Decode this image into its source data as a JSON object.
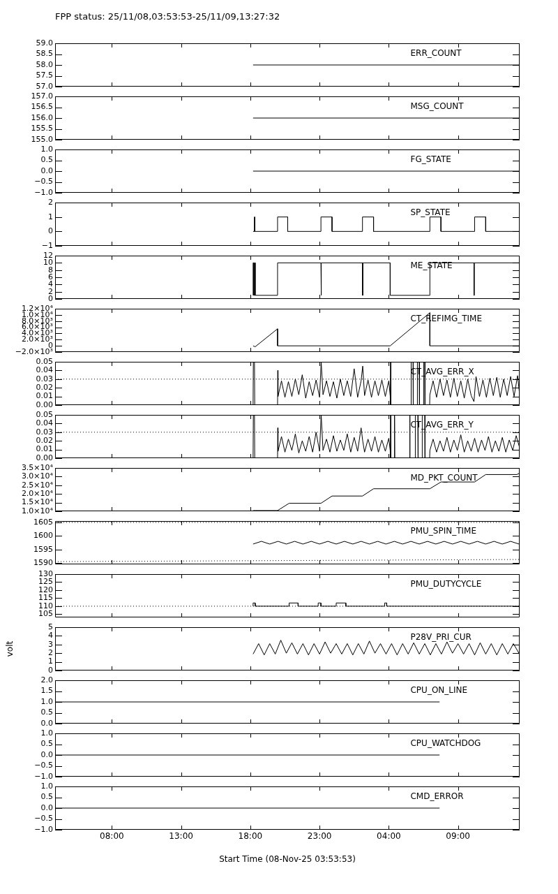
{
  "chart_data": [
    {
      "type": "line",
      "title": "FPP status: 25/11/08,03:53:53-25/11/09,13:27:32",
      "tick_labels": "y",
      "xlim": [
        "--11-08T03:54",
        "--11-09T13:27"
      ],
      "xticks": [
        {
          "value": "--11-08T08:00",
          "label": null
        },
        {
          "value": "--11-08T13:00",
          "label": null
        },
        {
          "value": "--11-08T18:00",
          "label": null
        },
        {
          "value": "--11-08T23:00",
          "label": null
        },
        {
          "value": "--11-09T04:00",
          "label": null
        },
        {
          "value": "--11-09T09:00",
          "label": null
        }
      ],
      "ylim": [
        57,
        59
      ],
      "yticks": [
        {
          "value": 57,
          "label": "57.0"
        },
        57.5,
        {
          "value": 58,
          "label": "58.0"
        },
        58.5,
        {
          "value": 59,
          "label": "59.0"
        }
      ],
      "annotations": [
        "ERR_COUNT"
      ],
      "series": [
        {
          "color": "#000000",
          "x": [
            "--11-08T18:12",
            "--11-09T13:27"
          ],
          "values": [
            58,
            58
          ]
        }
      ]
    },
    {
      "type": "line",
      "tick_labels": "y",
      "xlim": [
        "--11-08T03:54",
        "--11-09T13:27"
      ],
      "xticks": [
        {
          "value": "--11-08T08:00",
          "label": null
        },
        {
          "value": "--11-08T13:00",
          "label": null
        },
        {
          "value": "--11-08T18:00",
          "label": null
        },
        {
          "value": "--11-08T23:00",
          "label": null
        },
        {
          "value": "--11-09T04:00",
          "label": null
        },
        {
          "value": "--11-09T09:00",
          "label": null
        }
      ],
      "ylim": [
        155,
        157
      ],
      "yticks": [
        {
          "value": 155,
          "label": "155.0"
        },
        155.5,
        {
          "value": 156,
          "label": "156.0"
        },
        156.5,
        {
          "value": 157,
          "label": "157.0"
        }
      ],
      "annotations": [
        "MSG_COUNT"
      ],
      "series": [
        {
          "color": "#000000",
          "x": [
            "--11-08T18:12",
            "--11-09T13:27"
          ],
          "values": [
            156,
            156
          ]
        }
      ]
    },
    {
      "type": "line",
      "tick_labels": "y",
      "xlim": [
        "--11-08T03:54",
        "--11-09T13:27"
      ],
      "xticks": [
        {
          "value": "--11-08T08:00",
          "label": null
        },
        {
          "value": "--11-08T13:00",
          "label": null
        },
        {
          "value": "--11-08T18:00",
          "label": null
        },
        {
          "value": "--11-08T23:00",
          "label": null
        },
        {
          "value": "--11-09T04:00",
          "label": null
        },
        {
          "value": "--11-09T09:00",
          "label": null
        }
      ],
      "ylim": [
        -1,
        1
      ],
      "yticks": [
        {
          "value": -1,
          "label": "−1.0"
        },
        {
          "value": -0.5,
          "label": "−0.5"
        },
        {
          "value": 0,
          "label": "0.0"
        },
        0.5,
        {
          "value": 1,
          "label": "1.0"
        }
      ],
      "annotations": [
        "FG_STATE"
      ],
      "series": [
        {
          "color": "#000000",
          "x": [
            "--11-08T18:12",
            "--11-09T13:27"
          ],
          "values": [
            0,
            0
          ]
        }
      ]
    },
    {
      "type": "line",
      "tick_labels": "y",
      "xlim": [
        "--11-08T03:54",
        "--11-09T13:27"
      ],
      "xticks": [
        {
          "value": "--11-08T08:00",
          "label": null
        },
        {
          "value": "--11-08T13:00",
          "label": null
        },
        {
          "value": "--11-08T18:00",
          "label": null
        },
        {
          "value": "--11-08T23:00",
          "label": null
        },
        {
          "value": "--11-09T04:00",
          "label": null
        },
        {
          "value": "--11-09T09:00",
          "label": null
        }
      ],
      "ylim": [
        -1,
        2
      ],
      "yticks": [
        {
          "value": -1,
          "label": "−1"
        },
        0,
        1,
        2
      ],
      "annotations": [
        "SP_STATE"
      ],
      "series": [
        {
          "color": "#000000",
          "x": [
            "--11-08T18:12",
            "--11-08T18:18",
            "--11-08T18:18",
            "--11-08T18:19",
            "--11-08T18:19",
            "--11-08T19:58",
            "--11-08T19:58",
            "--11-08T20:42",
            "--11-08T20:42",
            "--11-08T23:06",
            "--11-08T23:06",
            "--11-08T23:54",
            "--11-08T23:54",
            "--11-09T02:06",
            "--11-09T02:06",
            "--11-09T02:54",
            "--11-09T02:54",
            "--11-09T06:58",
            "--11-09T06:58",
            "--11-09T07:46",
            "--11-09T07:46",
            "--11-09T10:12",
            "--11-09T10:12",
            "--11-09T11:00",
            "--11-09T11:00",
            "--11-09T13:27"
          ],
          "values": [
            0,
            0,
            1,
            1,
            0,
            0,
            1,
            1,
            0,
            0,
            1,
            1,
            0,
            0,
            1,
            1,
            0,
            0,
            1,
            1,
            0,
            0,
            1,
            1,
            0,
            0
          ]
        }
      ]
    },
    {
      "type": "line",
      "tick_labels": "y",
      "xlim": [
        "--11-08T03:54",
        "--11-09T13:27"
      ],
      "xticks": [
        {
          "value": "--11-08T08:00",
          "label": null
        },
        {
          "value": "--11-08T13:00",
          "label": null
        },
        {
          "value": "--11-08T18:00",
          "label": null
        },
        {
          "value": "--11-08T23:00",
          "label": null
        },
        {
          "value": "--11-09T04:00",
          "label": null
        },
        {
          "value": "--11-09T09:00",
          "label": null
        }
      ],
      "ylim": [
        0,
        12
      ],
      "yticks": [
        0,
        2,
        4,
        6,
        8,
        10,
        12
      ],
      "annotations": [
        "ME_STATE"
      ],
      "series": [
        {
          "color": "#000000",
          "x": [
            "--11-08T18:12",
            "--11-08T18:12",
            "--11-08T18:15",
            "--11-08T18:15",
            "--11-08T18:18",
            "--11-08T18:18",
            "--11-08T18:21",
            "--11-08T18:21",
            "--11-08T19:58",
            "--11-08T19:58",
            "--11-08T23:06",
            "--11-08T23:06",
            "--11-08T23:08",
            "--11-08T23:08",
            "--11-09T02:06",
            "--11-09T02:06",
            "--11-09T02:08",
            "--11-09T02:08",
            "--11-09T04:06",
            "--11-09T04:06",
            "--11-09T06:58",
            "--11-09T06:58",
            "--11-09T10:09",
            "--11-09T10:09",
            "--11-09T10:11",
            "--11-09T10:11",
            "--11-09T13:27"
          ],
          "values": [
            1,
            10,
            10,
            1,
            1,
            10,
            10,
            1,
            1,
            10,
            10,
            1,
            1,
            10,
            10,
            1,
            1,
            10,
            10,
            1,
            1,
            10,
            10,
            1,
            1,
            10,
            10
          ]
        }
      ]
    },
    {
      "type": "line",
      "tick_labels": "y",
      "xlim": [
        "--11-08T03:54",
        "--11-09T13:27"
      ],
      "xticks": [
        {
          "value": "--11-08T08:00",
          "label": null
        },
        {
          "value": "--11-08T13:00",
          "label": null
        },
        {
          "value": "--11-08T18:00",
          "label": null
        },
        {
          "value": "--11-08T23:00",
          "label": null
        },
        {
          "value": "--11-09T04:00",
          "label": null
        },
        {
          "value": "--11-09T09:00",
          "label": null
        }
      ],
      "ylim": [
        -2000,
        12000
      ],
      "yticks": [
        {
          "value": -2000,
          "label": "−2.0×10³"
        },
        0,
        {
          "value": 2000,
          "label": "2.0×10³"
        },
        {
          "value": 4000,
          "label": "4.0×10³"
        },
        {
          "value": 6000,
          "label": "6.0×10³"
        },
        {
          "value": 8000,
          "label": "8.0×10³"
        },
        {
          "value": 10000,
          "label": "1.0×10⁴"
        },
        {
          "value": 12000,
          "label": "1.2×10⁴"
        }
      ],
      "annotations": [
        "CT_REFIMG_TIME"
      ],
      "series": [
        {
          "color": "#000000",
          "x": [
            "--11-08T18:12",
            "--11-08T18:21",
            "--11-08T19:58",
            "--11-08T19:58",
            "--11-09T04:06",
            "--11-09T06:58",
            "--11-09T06:58",
            "--11-09T13:27"
          ],
          "values": [
            0,
            -300,
            5500,
            0,
            0,
            10700,
            0,
            0
          ]
        }
      ]
    },
    {
      "type": "line",
      "tick_labels": "y",
      "xlim": [
        "--11-08T03:54",
        "--11-09T13:27"
      ],
      "xticks": [
        {
          "value": "--11-08T08:00",
          "label": null
        },
        {
          "value": "--11-08T13:00",
          "label": null
        },
        {
          "value": "--11-08T18:00",
          "label": null
        },
        {
          "value": "--11-08T23:00",
          "label": null
        },
        {
          "value": "--11-09T04:00",
          "label": null
        },
        {
          "value": "--11-09T09:00",
          "label": null
        }
      ],
      "ylim": [
        0,
        0.05
      ],
      "yticks": [
        {
          "value": 0,
          "label": "0.00"
        },
        0.01,
        0.02,
        0.03,
        0.04,
        0.05
      ],
      "annotations": [
        "CT_AVG_ERR_X"
      ],
      "ref_lines": [
        {
          "axis": "y",
          "value": 0.03,
          "line_style": "dotted"
        }
      ],
      "series": [
        {
          "color": "#000000",
          "x": [
            "--11-08T18:12",
            "--11-08T18:13",
            "--11-08T18:18",
            "--11-08T18:19",
            "--11-08T19:58",
            "--11-08T19:59",
            "--11-08T20:00",
            "--11-08T20:15",
            "--11-08T20:30",
            "--11-08T20:45",
            "--11-08T21:00",
            "--11-08T21:15",
            "--11-08T21:30",
            "--11-08T21:45",
            "--11-08T22:00",
            "--11-08T22:15",
            "--11-08T22:30",
            "--11-08T22:45",
            "--11-08T23:00",
            "--11-08T23:07",
            "--11-08T23:15",
            "--11-08T23:30",
            "--11-08T23:45",
            "--11-09T00:00",
            "--11-09T00:15",
            "--11-09T00:30",
            "--11-09T00:45",
            "--11-09T01:00",
            "--11-09T01:15",
            "--11-09T01:30",
            "--11-09T01:45",
            "--11-09T02:00",
            "--11-09T02:07",
            "--11-09T02:15",
            "--11-09T02:30",
            "--11-09T02:45",
            "--11-09T03:00",
            "--11-09T03:15",
            "--11-09T03:30",
            "--11-09T03:45",
            "--11-09T04:00",
            "--11-09T04:06",
            "--11-09T04:07",
            "--11-09T04:08",
            "--11-09T04:09",
            "--11-09T05:36",
            "--11-09T05:37",
            "--11-09T05:45",
            "--11-09T05:46",
            "--11-09T06:03",
            "--11-09T06:04",
            "--11-09T06:12",
            "--11-09T06:13",
            "--11-09T06:30",
            "--11-09T06:31",
            "--11-09T06:36",
            "--11-09T06:37",
            "--11-09T06:57",
            "--11-09T06:58",
            "--11-09T07:12",
            "--11-09T07:27",
            "--11-09T07:42",
            "--11-09T07:57",
            "--11-09T08:12",
            "--11-09T08:27",
            "--11-09T08:42",
            "--11-09T08:57",
            "--11-09T09:12",
            "--11-09T09:27",
            "--11-09T09:42",
            "--11-09T09:57",
            "--11-09T10:09",
            "--11-09T10:18",
            "--11-09T10:33",
            "--11-09T10:48",
            "--11-09T11:03",
            "--11-09T11:18",
            "--11-09T11:33",
            "--11-09T11:48",
            "--11-09T12:03",
            "--11-09T12:18",
            "--11-09T12:33",
            "--11-09T12:48",
            "--11-09T13:03",
            "--11-09T13:18",
            "--11-09T13:27"
          ],
          "values": [
            0,
            0.05,
            0.05,
            0,
            0,
            0.04,
            0.01,
            0.028,
            0.009,
            0.027,
            0.01,
            0.03,
            0.012,
            0.035,
            0.008,
            0.027,
            0.011,
            0.029,
            0.009,
            0.05,
            0.012,
            0.028,
            0.01,
            0.027,
            0.008,
            0.03,
            0.011,
            0.028,
            0.01,
            0.042,
            0.009,
            0.028,
            0.045,
            0.011,
            0.029,
            0.009,
            0.028,
            0.011,
            0.029,
            0.01,
            0.028,
            0.011,
            0,
            0.05,
            0,
            0,
            0.05,
            0.05,
            0,
            0,
            0.05,
            0.05,
            0,
            0,
            0.05,
            0.05,
            0,
            0,
            0.012,
            0.028,
            0.009,
            0.03,
            0.011,
            0.029,
            0.009,
            0.031,
            0.01,
            0.028,
            0.008,
            0.03,
            0.011,
            0.004,
            0.033,
            0.01,
            0.029,
            0.009,
            0.031,
            0.011,
            0.032,
            0.009,
            0.03,
            0.011,
            0.033,
            0.01,
            0.034,
            0.012
          ]
        }
      ]
    },
    {
      "type": "line",
      "tick_labels": "y",
      "xlim": [
        "--11-08T03:54",
        "--11-09T13:27"
      ],
      "xticks": [
        {
          "value": "--11-08T08:00",
          "label": null
        },
        {
          "value": "--11-08T13:00",
          "label": null
        },
        {
          "value": "--11-08T18:00",
          "label": null
        },
        {
          "value": "--11-08T23:00",
          "label": null
        },
        {
          "value": "--11-09T04:00",
          "label": null
        },
        {
          "value": "--11-09T09:00",
          "label": null
        }
      ],
      "ylim": [
        0,
        0.05
      ],
      "yticks": [
        {
          "value": 0,
          "label": "0.00"
        },
        0.01,
        0.02,
        0.03,
        0.04,
        0.05
      ],
      "annotations": [
        "CT_AVG_ERR_Y"
      ],
      "ref_lines": [
        {
          "axis": "y",
          "value": 0.03,
          "line_style": "dotted"
        }
      ],
      "series": [
        {
          "color": "#000000",
          "x": [
            "--11-08T18:12",
            "--11-08T18:13",
            "--11-08T18:18",
            "--11-08T18:19",
            "--11-08T19:58",
            "--11-08T19:59",
            "--11-08T20:00",
            "--11-08T20:15",
            "--11-08T20:30",
            "--11-08T20:45",
            "--11-08T21:00",
            "--11-08T21:15",
            "--11-08T21:30",
            "--11-08T21:45",
            "--11-08T22:00",
            "--11-08T22:15",
            "--11-08T22:30",
            "--11-08T22:45",
            "--11-08T23:00",
            "--11-08T23:07",
            "--11-08T23:15",
            "--11-08T23:30",
            "--11-08T23:45",
            "--11-09T00:00",
            "--11-09T00:15",
            "--11-09T00:30",
            "--11-09T00:45",
            "--11-09T01:00",
            "--11-09T01:15",
            "--11-09T01:30",
            "--11-09T01:45",
            "--11-09T02:00",
            "--11-09T02:07",
            "--11-09T02:15",
            "--11-09T02:30",
            "--11-09T02:45",
            "--11-09T03:00",
            "--11-09T03:15",
            "--11-09T03:30",
            "--11-09T03:45",
            "--11-09T04:00",
            "--11-09T04:06",
            "--11-09T04:07",
            "--11-09T04:08",
            "--11-09T04:09",
            "--11-09T04:24",
            "--11-09T04:25",
            "--11-09T04:26",
            "--11-09T05:30",
            "--11-09T05:31",
            "--11-09T05:32",
            "--11-09T05:54",
            "--11-09T05:55",
            "--11-09T06:06",
            "--11-09T06:07",
            "--11-09T06:24",
            "--11-09T06:25",
            "--11-09T06:36",
            "--11-09T06:37",
            "--11-09T06:57",
            "--11-09T06:58",
            "--11-09T07:12",
            "--11-09T07:27",
            "--11-09T07:42",
            "--11-09T07:57",
            "--11-09T08:12",
            "--11-09T08:27",
            "--11-09T08:42",
            "--11-09T08:57",
            "--11-09T09:12",
            "--11-09T09:27",
            "--11-09T09:42",
            "--11-09T09:57",
            "--11-09T10:12",
            "--11-09T10:27",
            "--11-09T10:42",
            "--11-09T10:57",
            "--11-09T11:12",
            "--11-09T11:27",
            "--11-09T11:42",
            "--11-09T11:57",
            "--11-09T12:12",
            "--11-09T12:27",
            "--11-09T12:42",
            "--11-09T12:57",
            "--11-09T13:12",
            "--11-09T13:27"
          ],
          "values": [
            0,
            0.05,
            0.05,
            0,
            0,
            0.035,
            0.008,
            0.025,
            0.007,
            0.022,
            0.009,
            0.028,
            0.006,
            0.02,
            0.008,
            0.025,
            0.007,
            0.03,
            0.008,
            0.05,
            0.009,
            0.022,
            0.007,
            0.026,
            0.008,
            0.021,
            0.009,
            0.028,
            0.007,
            0.024,
            0.008,
            0.035,
            0.02,
            0.007,
            0.022,
            0.008,
            0.025,
            0.007,
            0.021,
            0.008,
            0.023,
            0.009,
            0,
            0.05,
            0,
            0,
            0.05,
            0,
            0,
            0.05,
            0,
            0,
            0.05,
            0.05,
            0,
            0,
            0.05,
            0.05,
            0,
            0,
            0.009,
            0.022,
            0.007,
            0.02,
            0.008,
            0.024,
            0.007,
            0.021,
            0.009,
            0.027,
            0.007,
            0.02,
            0.008,
            0.023,
            0.007,
            0.021,
            0.009,
            0.025,
            0.007,
            0.02,
            0.008,
            0.024,
            0.007,
            0.021,
            0.009,
            0.026,
            0.012
          ]
        }
      ]
    },
    {
      "type": "line",
      "tick_labels": "y",
      "xlim": [
        "--11-08T03:54",
        "--11-09T13:27"
      ],
      "xticks": [
        {
          "value": "--11-08T08:00",
          "label": null
        },
        {
          "value": "--11-08T13:00",
          "label": null
        },
        {
          "value": "--11-08T18:00",
          "label": null
        },
        {
          "value": "--11-08T23:00",
          "label": null
        },
        {
          "value": "--11-09T04:00",
          "label": null
        },
        {
          "value": "--11-09T09:00",
          "label": null
        }
      ],
      "ylim": [
        10000,
        35000
      ],
      "yticks": [
        {
          "value": 10000,
          "label": "1.0×10⁴"
        },
        {
          "value": 15000,
          "label": "1.5×10⁴"
        },
        {
          "value": 20000,
          "label": "2.0×10⁴"
        },
        {
          "value": 25000,
          "label": "2.5×10⁴"
        },
        {
          "value": 30000,
          "label": "3.0×10⁴"
        },
        {
          "value": 35000,
          "label": "3.5×10⁴"
        }
      ],
      "annotations": [
        "MD_PKT_COUNT"
      ],
      "series": [
        {
          "color": "#000000",
          "x": [
            "--11-08T18:12",
            "--11-08T19:58",
            "--11-08T20:48",
            "--11-08T23:06",
            "--11-08T23:54",
            "--11-09T02:06",
            "--11-09T02:54",
            "--11-09T06:58",
            "--11-09T07:46",
            "--11-09T10:12",
            "--11-09T11:00",
            "--11-09T13:15",
            "--11-09T13:27"
          ],
          "values": [
            10400,
            10400,
            14600,
            14600,
            18800,
            18800,
            23000,
            23000,
            26900,
            26900,
            31200,
            31200,
            32000
          ]
        }
      ]
    },
    {
      "type": "line",
      "tick_labels": "y",
      "xlim": [
        "--11-08T03:54",
        "--11-09T13:27"
      ],
      "xticks": [
        {
          "value": "--11-08T08:00",
          "label": null
        },
        {
          "value": "--11-08T13:00",
          "label": null
        },
        {
          "value": "--11-08T18:00",
          "label": null
        },
        {
          "value": "--11-08T23:00",
          "label": null
        },
        {
          "value": "--11-09T04:00",
          "label": null
        },
        {
          "value": "--11-09T09:00",
          "label": null
        }
      ],
      "ylim": [
        1589.5,
        1605.5
      ],
      "yticks": [
        1590,
        1595,
        1600,
        1605
      ],
      "annotations": [
        "PMU_SPIN_TIME"
      ],
      "ref_lines": [
        {
          "axis": "y",
          "value": 1605,
          "line_style": "dotted"
        }
      ],
      "series": [
        {
          "color": "#000000",
          "line_style": "dotted",
          "x": [
            "--11-08T03:54",
            "--11-09T13:27"
          ],
          "values": [
            1590.5,
            1591.3
          ]
        },
        {
          "color": "#000000",
          "x": [
            "--11-08T18:12",
            "--11-08T18:48",
            "--11-08T19:24",
            "--11-08T20:00",
            "--11-08T20:36",
            "--11-08T21:12",
            "--11-08T21:48",
            "--11-08T22:24",
            "--11-08T23:00",
            "--11-08T23:36",
            "--11-09T00:12",
            "--11-09T00:48",
            "--11-09T01:24",
            "--11-09T02:00",
            "--11-09T02:36",
            "--11-09T03:12",
            "--11-09T03:48",
            "--11-09T04:24",
            "--11-09T05:00",
            "--11-09T05:36",
            "--11-09T06:12",
            "--11-09T06:48",
            "--11-09T07:24",
            "--11-09T08:00",
            "--11-09T08:36",
            "--11-09T09:12",
            "--11-09T09:48",
            "--11-09T10:24",
            "--11-09T11:00",
            "--11-09T11:36",
            "--11-09T12:12",
            "--11-09T12:48",
            "--11-09T13:24"
          ],
          "values": [
            1597,
            1598,
            1597,
            1598,
            1597,
            1598,
            1597,
            1598,
            1597,
            1598,
            1597,
            1598,
            1597,
            1598,
            1597,
            1598,
            1597,
            1598,
            1597,
            1598,
            1597,
            1598,
            1597,
            1598,
            1597,
            1598,
            1597,
            1598,
            1597,
            1598,
            1597,
            1598,
            1597
          ]
        }
      ]
    },
    {
      "type": "line",
      "tick_labels": "y",
      "xlim": [
        "--11-08T03:54",
        "--11-09T13:27"
      ],
      "xticks": [
        {
          "value": "--11-08T08:00",
          "label": null
        },
        {
          "value": "--11-08T13:00",
          "label": null
        },
        {
          "value": "--11-08T18:00",
          "label": null
        },
        {
          "value": "--11-08T23:00",
          "label": null
        },
        {
          "value": "--11-09T04:00",
          "label": null
        },
        {
          "value": "--11-09T09:00",
          "label": null
        }
      ],
      "ylim": [
        103,
        130
      ],
      "yticks": [
        105,
        110,
        115,
        120,
        125,
        130
      ],
      "annotations": [
        "PMU_DUTYCYCLE"
      ],
      "ref_lines": [
        {
          "axis": "y",
          "value": 110,
          "line_style": "dotted"
        }
      ],
      "series": [
        {
          "color": "#000000",
          "x": [
            "--11-08T18:12",
            "--11-08T18:12",
            "--11-08T18:21",
            "--11-08T18:21",
            "--11-08T20:48",
            "--11-08T20:48",
            "--11-08T21:27",
            "--11-08T21:27",
            "--11-08T22:54",
            "--11-08T22:54",
            "--11-08T23:06",
            "--11-08T23:06",
            "--11-09T00:12",
            "--11-09T00:12",
            "--11-09T00:54",
            "--11-09T00:54",
            "--11-09T03:42",
            "--11-09T03:42",
            "--11-09T03:51",
            "--11-09T03:51",
            "--11-09T13:27"
          ],
          "values": [
            110,
            112,
            112,
            110,
            110,
            112,
            112,
            110,
            110,
            112,
            112,
            110,
            110,
            112,
            112,
            110,
            110,
            112,
            112,
            110,
            110
          ]
        }
      ]
    },
    {
      "type": "line",
      "tick_labels": "y",
      "xlim": [
        "--11-08T03:54",
        "--11-09T13:27"
      ],
      "xticks": [
        {
          "value": "--11-08T08:00",
          "label": null
        },
        {
          "value": "--11-08T13:00",
          "label": null
        },
        {
          "value": "--11-08T18:00",
          "label": null
        },
        {
          "value": "--11-08T23:00",
          "label": null
        },
        {
          "value": "--11-09T04:00",
          "label": null
        },
        {
          "value": "--11-09T09:00",
          "label": null
        }
      ],
      "ylim": [
        0,
        5
      ],
      "yticks": [
        0,
        1,
        2,
        3,
        4,
        5
      ],
      "ylabel": "volt",
      "annotations": [
        "P28V_PRI_CUR"
      ],
      "series": [
        {
          "color": "#000000",
          "x": [
            "--11-08T18:12",
            "--11-08T18:36",
            "--11-08T19:00",
            "--11-08T19:24",
            "--11-08T19:48",
            "--11-08T20:12",
            "--11-08T20:36",
            "--11-08T21:00",
            "--11-08T21:24",
            "--11-08T21:48",
            "--11-08T22:12",
            "--11-08T22:36",
            "--11-08T23:00",
            "--11-08T23:24",
            "--11-08T23:48",
            "--11-09T00:12",
            "--11-09T00:36",
            "--11-09T01:00",
            "--11-09T01:24",
            "--11-09T01:48",
            "--11-09T02:12",
            "--11-09T02:36",
            "--11-09T03:00",
            "--11-09T03:24",
            "--11-09T03:48",
            "--11-09T04:12",
            "--11-09T04:36",
            "--11-09T05:00",
            "--11-09T05:24",
            "--11-09T05:48",
            "--11-09T06:12",
            "--11-09T06:36",
            "--11-09T07:00",
            "--11-09T07:24",
            "--11-09T07:48",
            "--11-09T08:12",
            "--11-09T08:36",
            "--11-09T09:00",
            "--11-09T09:24",
            "--11-09T09:48",
            "--11-09T10:12",
            "--11-09T10:36",
            "--11-09T11:00",
            "--11-09T11:24",
            "--11-09T11:48",
            "--11-09T12:12",
            "--11-09T12:36",
            "--11-09T13:00",
            "--11-09T13:24"
          ],
          "values": [
            1.9,
            3.1,
            1.8,
            3.1,
            1.9,
            3.5,
            2.0,
            3.2,
            1.9,
            3.1,
            1.8,
            3.1,
            1.9,
            3.3,
            2.0,
            3.1,
            1.9,
            3.1,
            1.8,
            3.1,
            1.9,
            3.4,
            2.0,
            3.1,
            1.9,
            3.1,
            1.8,
            3.1,
            1.9,
            3.2,
            1.9,
            3.1,
            1.8,
            3.1,
            1.9,
            3.3,
            2.0,
            3.1,
            1.9,
            3.1,
            1.8,
            3.2,
            1.9,
            3.1,
            1.8,
            3.1,
            1.9,
            3.1,
            2.0
          ]
        }
      ]
    },
    {
      "type": "line",
      "tick_labels": "y",
      "xlim": [
        "--11-08T03:54",
        "--11-09T13:27"
      ],
      "xticks": [
        {
          "value": "--11-08T08:00",
          "label": null
        },
        {
          "value": "--11-08T13:00",
          "label": null
        },
        {
          "value": "--11-08T18:00",
          "label": null
        },
        {
          "value": "--11-08T23:00",
          "label": null
        },
        {
          "value": "--11-09T04:00",
          "label": null
        },
        {
          "value": "--11-09T09:00",
          "label": null
        }
      ],
      "ylim": [
        0,
        2
      ],
      "yticks": [
        {
          "value": 0,
          "label": "0.0"
        },
        0.5,
        {
          "value": 1,
          "label": "1.0"
        },
        1.5,
        {
          "value": 2,
          "label": "2.0"
        }
      ],
      "annotations": [
        "CPU_ON_LINE"
      ],
      "series": [
        {
          "color": "#000000",
          "x": [
            "--11-08T03:54",
            "--11-09T07:40"
          ],
          "values": [
            1,
            1
          ]
        }
      ]
    },
    {
      "type": "line",
      "tick_labels": "y",
      "xlim": [
        "--11-08T03:54",
        "--11-09T13:27"
      ],
      "xticks": [
        {
          "value": "--11-08T08:00",
          "label": null
        },
        {
          "value": "--11-08T13:00",
          "label": null
        },
        {
          "value": "--11-08T18:00",
          "label": null
        },
        {
          "value": "--11-08T23:00",
          "label": null
        },
        {
          "value": "--11-09T04:00",
          "label": null
        },
        {
          "value": "--11-09T09:00",
          "label": null
        }
      ],
      "ylim": [
        -1,
        1
      ],
      "yticks": [
        {
          "value": -1,
          "label": "−1.0"
        },
        {
          "value": -0.5,
          "label": "−0.5"
        },
        {
          "value": 0,
          "label": "0.0"
        },
        0.5,
        {
          "value": 1,
          "label": "1.0"
        }
      ],
      "annotations": [
        "CPU_WATCHDOG"
      ],
      "series": [
        {
          "color": "#000000",
          "x": [
            "--11-08T03:54",
            "--11-09T07:40"
          ],
          "values": [
            0,
            0
          ]
        }
      ]
    },
    {
      "type": "line",
      "xlabel": "Start Time (08-Nov-25 03:53:53)",
      "xlim": [
        "--11-08T03:54",
        "--11-09T13:27"
      ],
      "xticks": [
        {
          "value": "--11-08T08:00",
          "label": "08:00"
        },
        {
          "value": "--11-08T13:00",
          "label": "13:00"
        },
        {
          "value": "--11-08T18:00",
          "label": "18:00"
        },
        {
          "value": "--11-08T23:00",
          "label": "23:00"
        },
        {
          "value": "--11-09T04:00",
          "label": "04:00"
        },
        {
          "value": "--11-09T09:00",
          "label": "09:00"
        }
      ],
      "ylim": [
        -1,
        1
      ],
      "yticks": [
        {
          "value": -1,
          "label": "−1.0"
        },
        {
          "value": -0.5,
          "label": "−0.5"
        },
        {
          "value": 0,
          "label": "0.0"
        },
        0.5,
        {
          "value": 1,
          "label": "1.0"
        }
      ],
      "annotations": [
        "CMD_ERROR"
      ],
      "series": [
        {
          "color": "#000000",
          "x": [
            "--11-08T03:54",
            "--11-09T07:40"
          ],
          "values": [
            0,
            0
          ]
        }
      ]
    }
  ]
}
